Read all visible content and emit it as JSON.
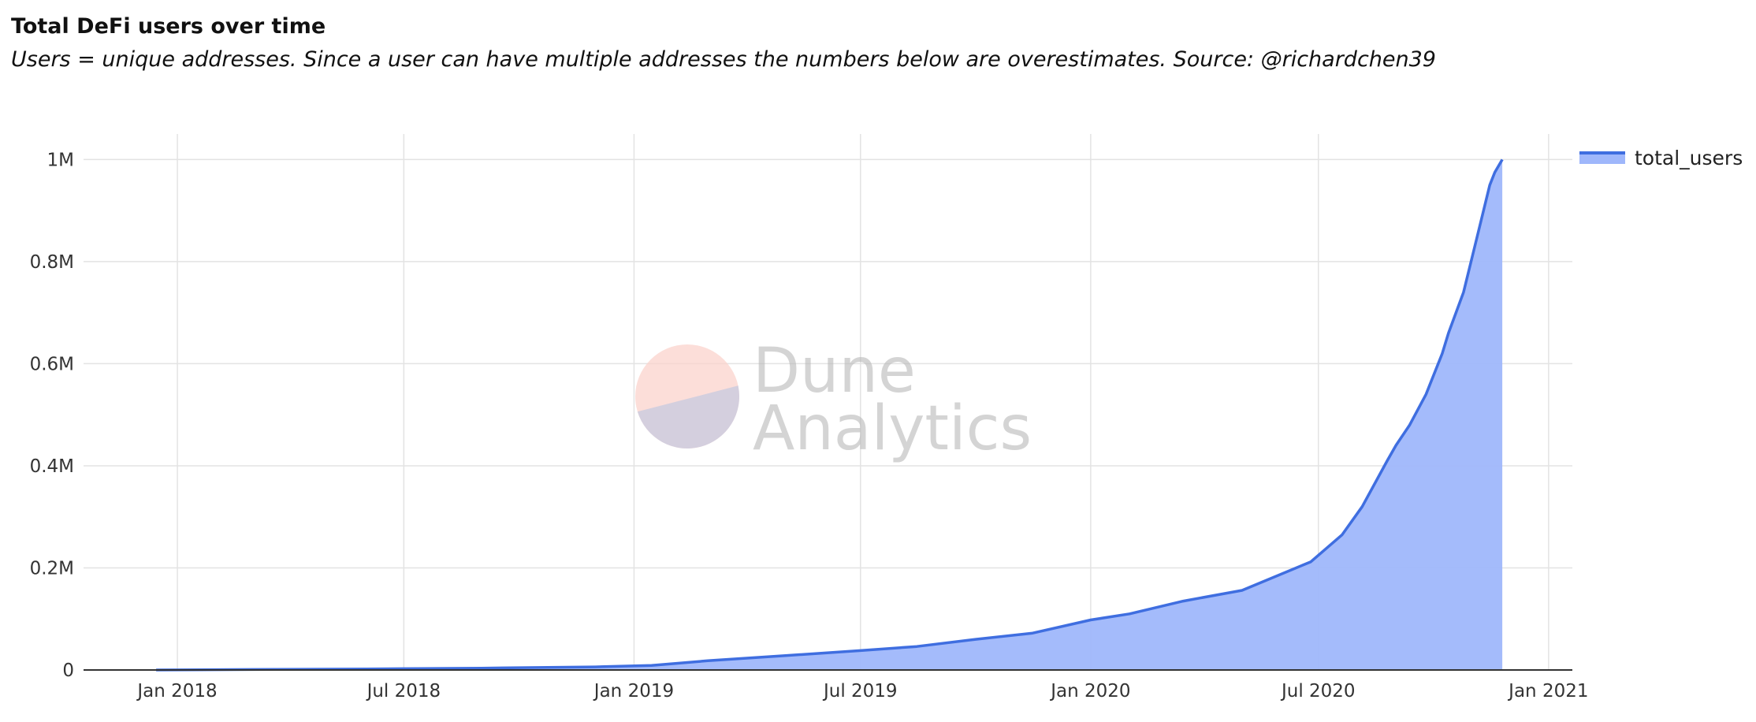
{
  "header": {
    "title": "Total DeFi users over time",
    "subtitle": "Users = unique addresses. Since a user can have multiple addresses the numbers below are overestimates. Source: @richardchen39"
  },
  "watermark": {
    "line1": "Dune",
    "line2": "Analytics"
  },
  "colors": {
    "line": "#3f6ee0",
    "fill": "#9fb7fb",
    "grid": "#e3e3e3",
    "axis": "#333333"
  },
  "chart_data": {
    "type": "area",
    "title": "Total DeFi users over time",
    "xlabel": "",
    "ylabel": "",
    "grid": true,
    "legend_position": "top-right",
    "xlim": [
      "2017-10-18",
      "2021-01-20"
    ],
    "ylim": [
      0,
      1050000
    ],
    "x_ticks": [
      {
        "date": "2018-01-01",
        "label": "Jan 2018"
      },
      {
        "date": "2018-07-01",
        "label": "Jul 2018"
      },
      {
        "date": "2019-01-01",
        "label": "Jan 2019"
      },
      {
        "date": "2019-07-01",
        "label": "Jul 2019"
      },
      {
        "date": "2020-01-01",
        "label": "Jan 2020"
      },
      {
        "date": "2020-07-01",
        "label": "Jul 2020"
      },
      {
        "date": "2021-01-01",
        "label": "Jan 2021"
      }
    ],
    "y_ticks": [
      {
        "value": 0,
        "label": "0"
      },
      {
        "value": 200000,
        "label": "0.2M"
      },
      {
        "value": 400000,
        "label": "0.4M"
      },
      {
        "value": 600000,
        "label": "0.6M"
      },
      {
        "value": 800000,
        "label": "0.8M"
      },
      {
        "value": 1000000,
        "label": "1M"
      }
    ],
    "series": [
      {
        "name": "total_users",
        "points": [
          {
            "x": "2017-12-15",
            "y": 0
          },
          {
            "x": "2018-03-01",
            "y": 1000
          },
          {
            "x": "2018-06-01",
            "y": 2000
          },
          {
            "x": "2018-09-01",
            "y": 3500
          },
          {
            "x": "2018-12-01",
            "y": 6000
          },
          {
            "x": "2019-01-15",
            "y": 9000
          },
          {
            "x": "2019-03-01",
            "y": 18000
          },
          {
            "x": "2019-05-01",
            "y": 28000
          },
          {
            "x": "2019-07-01",
            "y": 38000
          },
          {
            "x": "2019-08-15",
            "y": 46000
          },
          {
            "x": "2019-10-01",
            "y": 60000
          },
          {
            "x": "2019-11-15",
            "y": 72000
          },
          {
            "x": "2020-01-01",
            "y": 98000
          },
          {
            "x": "2020-02-01",
            "y": 110000
          },
          {
            "x": "2020-03-15",
            "y": 135000
          },
          {
            "x": "2020-05-01",
            "y": 156000
          },
          {
            "x": "2020-06-25",
            "y": 212000
          },
          {
            "x": "2020-07-20",
            "y": 265000
          },
          {
            "x": "2020-08-05",
            "y": 320000
          },
          {
            "x": "2020-08-25",
            "y": 410000
          },
          {
            "x": "2020-09-01",
            "y": 440000
          },
          {
            "x": "2020-09-12",
            "y": 480000
          },
          {
            "x": "2020-09-25",
            "y": 540000
          },
          {
            "x": "2020-10-08",
            "y": 620000
          },
          {
            "x": "2020-10-13",
            "y": 660000
          },
          {
            "x": "2020-10-25",
            "y": 740000
          },
          {
            "x": "2020-11-05",
            "y": 850000
          },
          {
            "x": "2020-11-15",
            "y": 950000
          },
          {
            "x": "2020-11-19",
            "y": 975000
          },
          {
            "x": "2020-11-25",
            "y": 1000000
          }
        ]
      }
    ]
  }
}
